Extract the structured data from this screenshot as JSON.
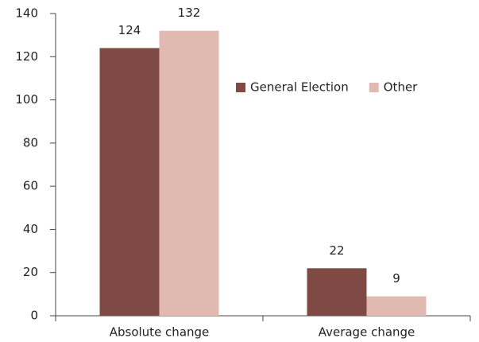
{
  "chart_data": {
    "type": "bar",
    "categories": [
      "Absolute change",
      "Average change"
    ],
    "series": [
      {
        "name": "General Election",
        "color": "#7f4a43",
        "values": [
          124,
          22
        ]
      },
      {
        "name": "Other",
        "color": "#e0b9b0",
        "values": [
          132,
          9
        ]
      }
    ],
    "ylim": [
      0,
      140
    ],
    "yticks": [
      0,
      20,
      40,
      60,
      80,
      100,
      120,
      140
    ],
    "grid": false
  }
}
